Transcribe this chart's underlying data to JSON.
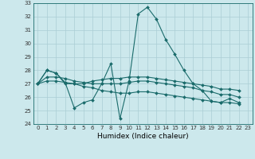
{
  "title": "",
  "xlabel": "Humidex (Indice chaleur)",
  "bg_color": "#cce8ec",
  "grid_color": "#aacdd4",
  "line_color": "#1a6b6b",
  "xlim": [
    -0.5,
    23.5
  ],
  "ylim": [
    24,
    33
  ],
  "yticks": [
    24,
    25,
    26,
    27,
    28,
    29,
    30,
    31,
    32,
    33
  ],
  "xticks": [
    0,
    1,
    2,
    3,
    4,
    5,
    6,
    7,
    8,
    9,
    10,
    11,
    12,
    13,
    14,
    15,
    16,
    17,
    18,
    19,
    20,
    21,
    22,
    23
  ],
  "series": [
    [
      27.0,
      28.0,
      27.8,
      27.1,
      25.2,
      25.6,
      25.8,
      27.0,
      28.5,
      24.4,
      27.2,
      32.2,
      32.7,
      31.8,
      30.3,
      29.2,
      28.0,
      27.0,
      26.5,
      25.7,
      25.6,
      25.9,
      25.6,
      null
    ],
    [
      27.0,
      28.0,
      27.8,
      27.0,
      27.0,
      27.0,
      27.2,
      27.3,
      27.4,
      27.4,
      27.5,
      27.5,
      27.5,
      27.4,
      27.3,
      27.2,
      27.1,
      27.0,
      26.9,
      26.8,
      26.6,
      26.6,
      26.5,
      null
    ],
    [
      27.0,
      27.5,
      27.5,
      27.4,
      27.2,
      27.1,
      27.0,
      27.0,
      27.0,
      27.0,
      27.1,
      27.2,
      27.2,
      27.1,
      27.0,
      26.9,
      26.8,
      26.7,
      26.5,
      26.4,
      26.2,
      26.2,
      26.0,
      null
    ],
    [
      27.0,
      27.2,
      27.2,
      27.1,
      27.0,
      26.8,
      26.7,
      26.5,
      26.4,
      26.3,
      26.3,
      26.4,
      26.4,
      26.3,
      26.2,
      26.1,
      26.0,
      25.9,
      25.8,
      25.7,
      25.6,
      25.6,
      25.5,
      null
    ]
  ],
  "tick_fontsize": 5.0,
  "xlabel_fontsize": 6.5
}
